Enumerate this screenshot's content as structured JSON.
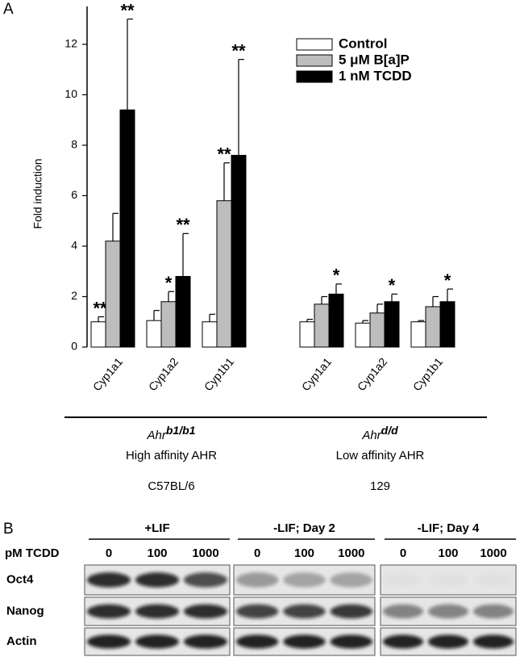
{
  "chart_data": {
    "type": "bar",
    "panel_label": "A",
    "y_label": "Fold induction",
    "ylim": [
      0,
      13.5
    ],
    "yticks": [
      0,
      2,
      4,
      6,
      8,
      10,
      12
    ],
    "legend": "upper right",
    "groups": [
      {
        "categories": [
          "Cyp1a1",
          "Cyp1a2",
          "Cyp1b1"
        ],
        "gene": "Ahr",
        "allele": "b1/b1",
        "affinity": "High affinity AHR",
        "strain": "C57BL/6"
      },
      {
        "categories": [
          "Cyp1a1",
          "Cyp1a2",
          "Cyp1b1"
        ],
        "gene": "Ahr",
        "allele": "d/d",
        "affinity": "Low affinity AHR",
        "strain": "129"
      }
    ],
    "series": [
      {
        "name": "Control",
        "color": "#ffffff",
        "values": [
          1.0,
          1.05,
          1.0,
          1.0,
          0.95,
          1.0
        ],
        "errors": [
          0.2,
          0.4,
          0.3,
          0.1,
          0.1,
          0.05
        ],
        "significance": [
          "**",
          null,
          null,
          null,
          null,
          null
        ]
      },
      {
        "name": "5 μM B[a]P",
        "color": "#bdbdbd",
        "values": [
          4.2,
          1.8,
          5.8,
          1.7,
          1.35,
          1.6
        ],
        "errors": [
          1.1,
          0.4,
          1.5,
          0.3,
          0.35,
          0.4
        ],
        "significance": [
          null,
          "*",
          "**",
          null,
          null,
          null
        ]
      },
      {
        "name": "1 nM TCDD",
        "color": "#000000",
        "values": [
          9.4,
          2.8,
          7.6,
          2.1,
          1.8,
          1.8
        ],
        "errors": [
          3.6,
          1.7,
          3.8,
          0.4,
          0.3,
          0.5
        ],
        "significance": [
          "**",
          "**",
          "**",
          "*",
          "*",
          "*"
        ]
      }
    ]
  },
  "blot": {
    "panel_label": "B",
    "dose_label": "pM TCDD",
    "conditions": [
      {
        "label": "+LIF",
        "doses": [
          "0",
          "100",
          "1000"
        ]
      },
      {
        "label": "-LIF; Day 2",
        "doses": [
          "0",
          "100",
          "1000"
        ]
      },
      {
        "label": "-LIF; Day 4",
        "doses": [
          "0",
          "100",
          "1000"
        ]
      }
    ],
    "rows": [
      "Oct4",
      "Nanog",
      "Actin"
    ]
  }
}
